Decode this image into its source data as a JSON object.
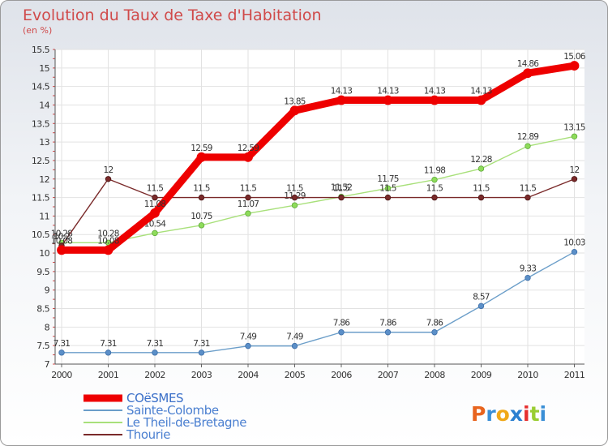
{
  "title": "Evolution du Taux de Taxe d'Habitation",
  "subtitle": "(en %)",
  "logo": {
    "letters": [
      "P",
      "r",
      "o",
      "x",
      "i",
      "t",
      "i"
    ],
    "colors": [
      "#e8641e",
      "#3a8fd6",
      "#f0a818",
      "#2b7fd0",
      "#e63030",
      "#9acd32",
      "#3a8fd6"
    ]
  },
  "chart_data": {
    "type": "line",
    "title": "Evolution du Taux de Taxe d'Habitation",
    "subtitle": "(en %)",
    "x": [
      "2000",
      "2001",
      "2002",
      "2003",
      "2004",
      "2005",
      "2006",
      "2007",
      "2008",
      "2009",
      "2010",
      "2011"
    ],
    "ylim": [
      7,
      15.5
    ],
    "yticks": [
      "7",
      "7.5",
      "8",
      "8.5",
      "9",
      "9.5",
      "10",
      "10.5",
      "11",
      "11.5",
      "12",
      "12.5",
      "13",
      "13.5",
      "14",
      "14.5",
      "15",
      "15.5"
    ],
    "grid": true,
    "legend_position": "bottom-left",
    "series": [
      {
        "name": "COëSMES",
        "color": "#ee0000",
        "values": [
          10.08,
          10.08,
          11.08,
          12.59,
          12.59,
          13.85,
          14.13,
          14.13,
          14.13,
          14.13,
          14.86,
          15.06
        ],
        "labels": [
          "10.08",
          "10.08",
          "11.08",
          "12.59",
          "12.59",
          "13.85",
          "14.13",
          "14.13",
          "14.13",
          "14.13",
          "14.86",
          "15.06"
        ]
      },
      {
        "name": "Sainte-Colombe",
        "color": "#6b9ec9",
        "values": [
          7.31,
          7.31,
          7.31,
          7.31,
          7.49,
          7.49,
          7.86,
          7.86,
          7.86,
          8.57,
          9.33,
          10.03
        ],
        "labels": [
          "7.31",
          "7.31",
          "7.31",
          "7.31",
          "7.49",
          "7.49",
          "7.86",
          "7.86",
          "7.86",
          "8.57",
          "9.33",
          "10.03"
        ]
      },
      {
        "name": "Le Theil-de-Bretagne",
        "color": "#a8e07a",
        "values": [
          10.28,
          10.28,
          10.54,
          10.75,
          11.07,
          11.29,
          11.52,
          11.75,
          11.98,
          12.28,
          12.89,
          13.15
        ],
        "labels": [
          "10.28",
          "10.28",
          "10.54",
          "10.75",
          "11.07",
          "11.29",
          "11.52",
          "11.75",
          "11.98",
          "12.28",
          "12.89",
          "13.15"
        ]
      },
      {
        "name": "Thourie",
        "color": "#7a2a2a",
        "values": [
          10.2,
          12,
          11.5,
          11.5,
          11.5,
          11.5,
          11.5,
          11.5,
          11.5,
          11.5,
          11.5,
          12
        ],
        "labels": [
          "10.2",
          "12",
          "11.5",
          "11.5",
          "11.5",
          "11.5",
          "11.5",
          "11.5",
          "11.5",
          "11.5",
          "11.5",
          "12"
        ]
      }
    ]
  }
}
